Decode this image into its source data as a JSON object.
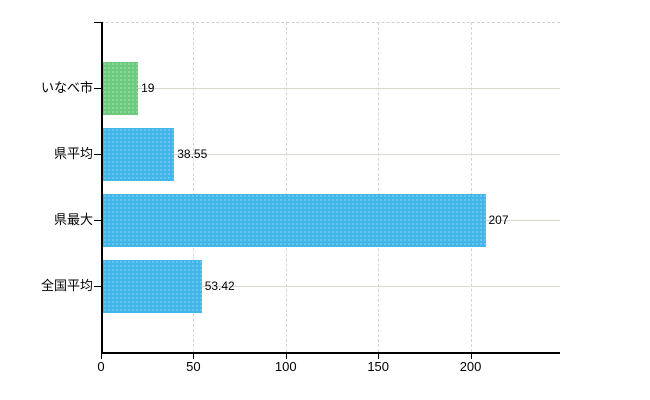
{
  "chart_data": {
    "type": "bar",
    "orientation": "horizontal",
    "title": "",
    "xlabel": "",
    "ylabel": "",
    "categories": [
      "いなべ市",
      "県平均",
      "県最大",
      "全国平均"
    ],
    "values": [
      19,
      38.55,
      207,
      53.42
    ],
    "value_labels": [
      "19",
      "38.55",
      "207",
      "53.42"
    ],
    "bar_colors": [
      "#6bca7d",
      "#40b7ea",
      "#40b7ea",
      "#40b7ea"
    ],
    "x_ticks": [
      0,
      50,
      100,
      150,
      200
    ],
    "x_tick_labels": [
      "0",
      "50",
      "100",
      "150",
      "200"
    ],
    "xlim": [
      0,
      248.4
    ],
    "grid": {
      "vertical": "dashed light gray at each x tick",
      "horizontal": "solid light gray at each category center",
      "top_border": "dashed light gray"
    },
    "legend": "none",
    "background_color": "#ffffff",
    "axis_color": "#000000",
    "text_color": "#000000"
  }
}
